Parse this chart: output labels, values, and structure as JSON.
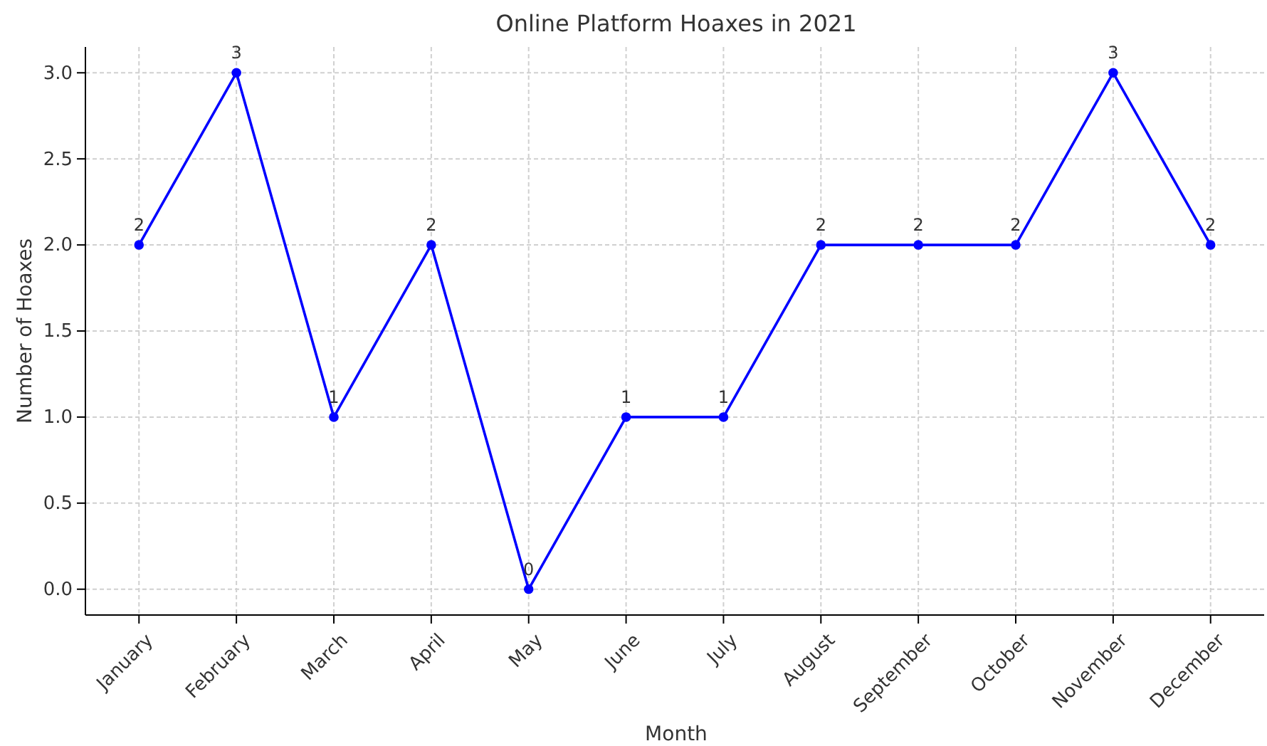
{
  "chart_data": {
    "type": "line",
    "title": "Online Platform Hoaxes in 2021",
    "xlabel": "Month",
    "ylabel": "Number of Hoaxes",
    "categories": [
      "January",
      "February",
      "March",
      "April",
      "May",
      "June",
      "July",
      "August",
      "September",
      "October",
      "November",
      "December"
    ],
    "series": [
      {
        "color": "#0000ff",
        "values": [
          2,
          3,
          1,
          2,
          0,
          1,
          1,
          2,
          2,
          2,
          3,
          2
        ]
      }
    ],
    "ylim": [
      -0.15,
      3.15
    ],
    "yticks": [
      {
        "value": 0,
        "label": "0.0"
      },
      {
        "value": 0.5,
        "label": "0.5"
      },
      {
        "value": 1,
        "label": "1.0"
      },
      {
        "value": 1.5,
        "label": "1.5"
      },
      {
        "value": 2,
        "label": "2.0"
      },
      {
        "value": 2.5,
        "label": "2.5"
      },
      {
        "value": 3,
        "label": "3.0"
      }
    ],
    "grid": true,
    "marker": "circle",
    "line_style": "solid",
    "data_labels": true
  }
}
